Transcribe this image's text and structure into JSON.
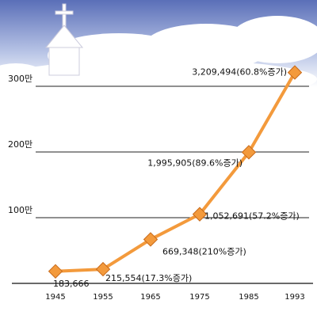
{
  "chart_data": {
    "type": "line",
    "categories": [
      "1945",
      "1955",
      "1965",
      "1975",
      "1985",
      "1993"
    ],
    "series": [
      {
        "color": "#f39a3c",
        "values": [
          183666,
          215554,
          669348,
          1052691,
          1995905,
          3209494
        ],
        "value_labels": [
          "183,666",
          "215,554(17.3%증가)",
          "669,348(210%증가)",
          "1,052,691(57.2%증가)",
          "1,995,905(89.6%증가)",
          "3,209,494(60.8%증가)"
        ]
      }
    ],
    "ylim": [
      0,
      3500000
    ],
    "yticks": [
      {
        "value": 1000000,
        "label": "100만"
      },
      {
        "value": 2000000,
        "label": "200만"
      },
      {
        "value": 3000000,
        "label": "300만"
      }
    ],
    "grid": true
  }
}
